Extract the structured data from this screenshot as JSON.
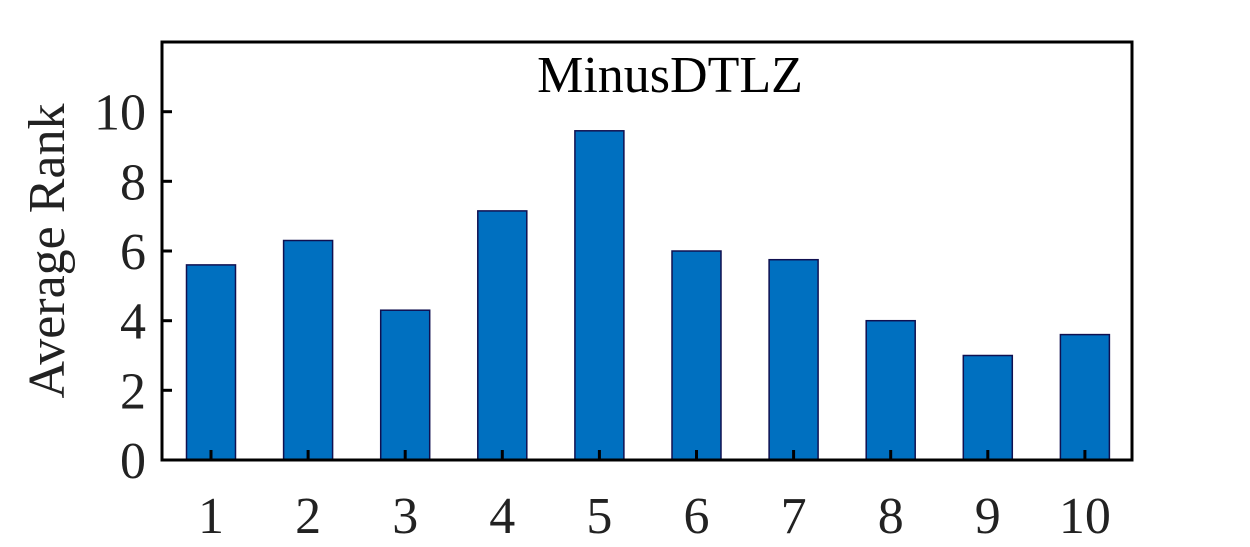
{
  "chart_data": {
    "type": "bar",
    "title": "MinusDTLZ",
    "xlabel": "",
    "ylabel": "Average Rank",
    "categories": [
      "1",
      "2",
      "3",
      "4",
      "5",
      "6",
      "7",
      "8",
      "9",
      "10"
    ],
    "values": [
      5.6,
      6.3,
      4.3,
      7.15,
      9.45,
      6.0,
      5.75,
      4.0,
      3.0,
      3.6
    ],
    "ylim": [
      0,
      12
    ],
    "yticks": [
      0,
      2,
      4,
      6,
      8,
      10
    ],
    "bar_color": "#0070C0",
    "bar_edge_color": "#101050",
    "grid": false,
    "legend": "none"
  }
}
